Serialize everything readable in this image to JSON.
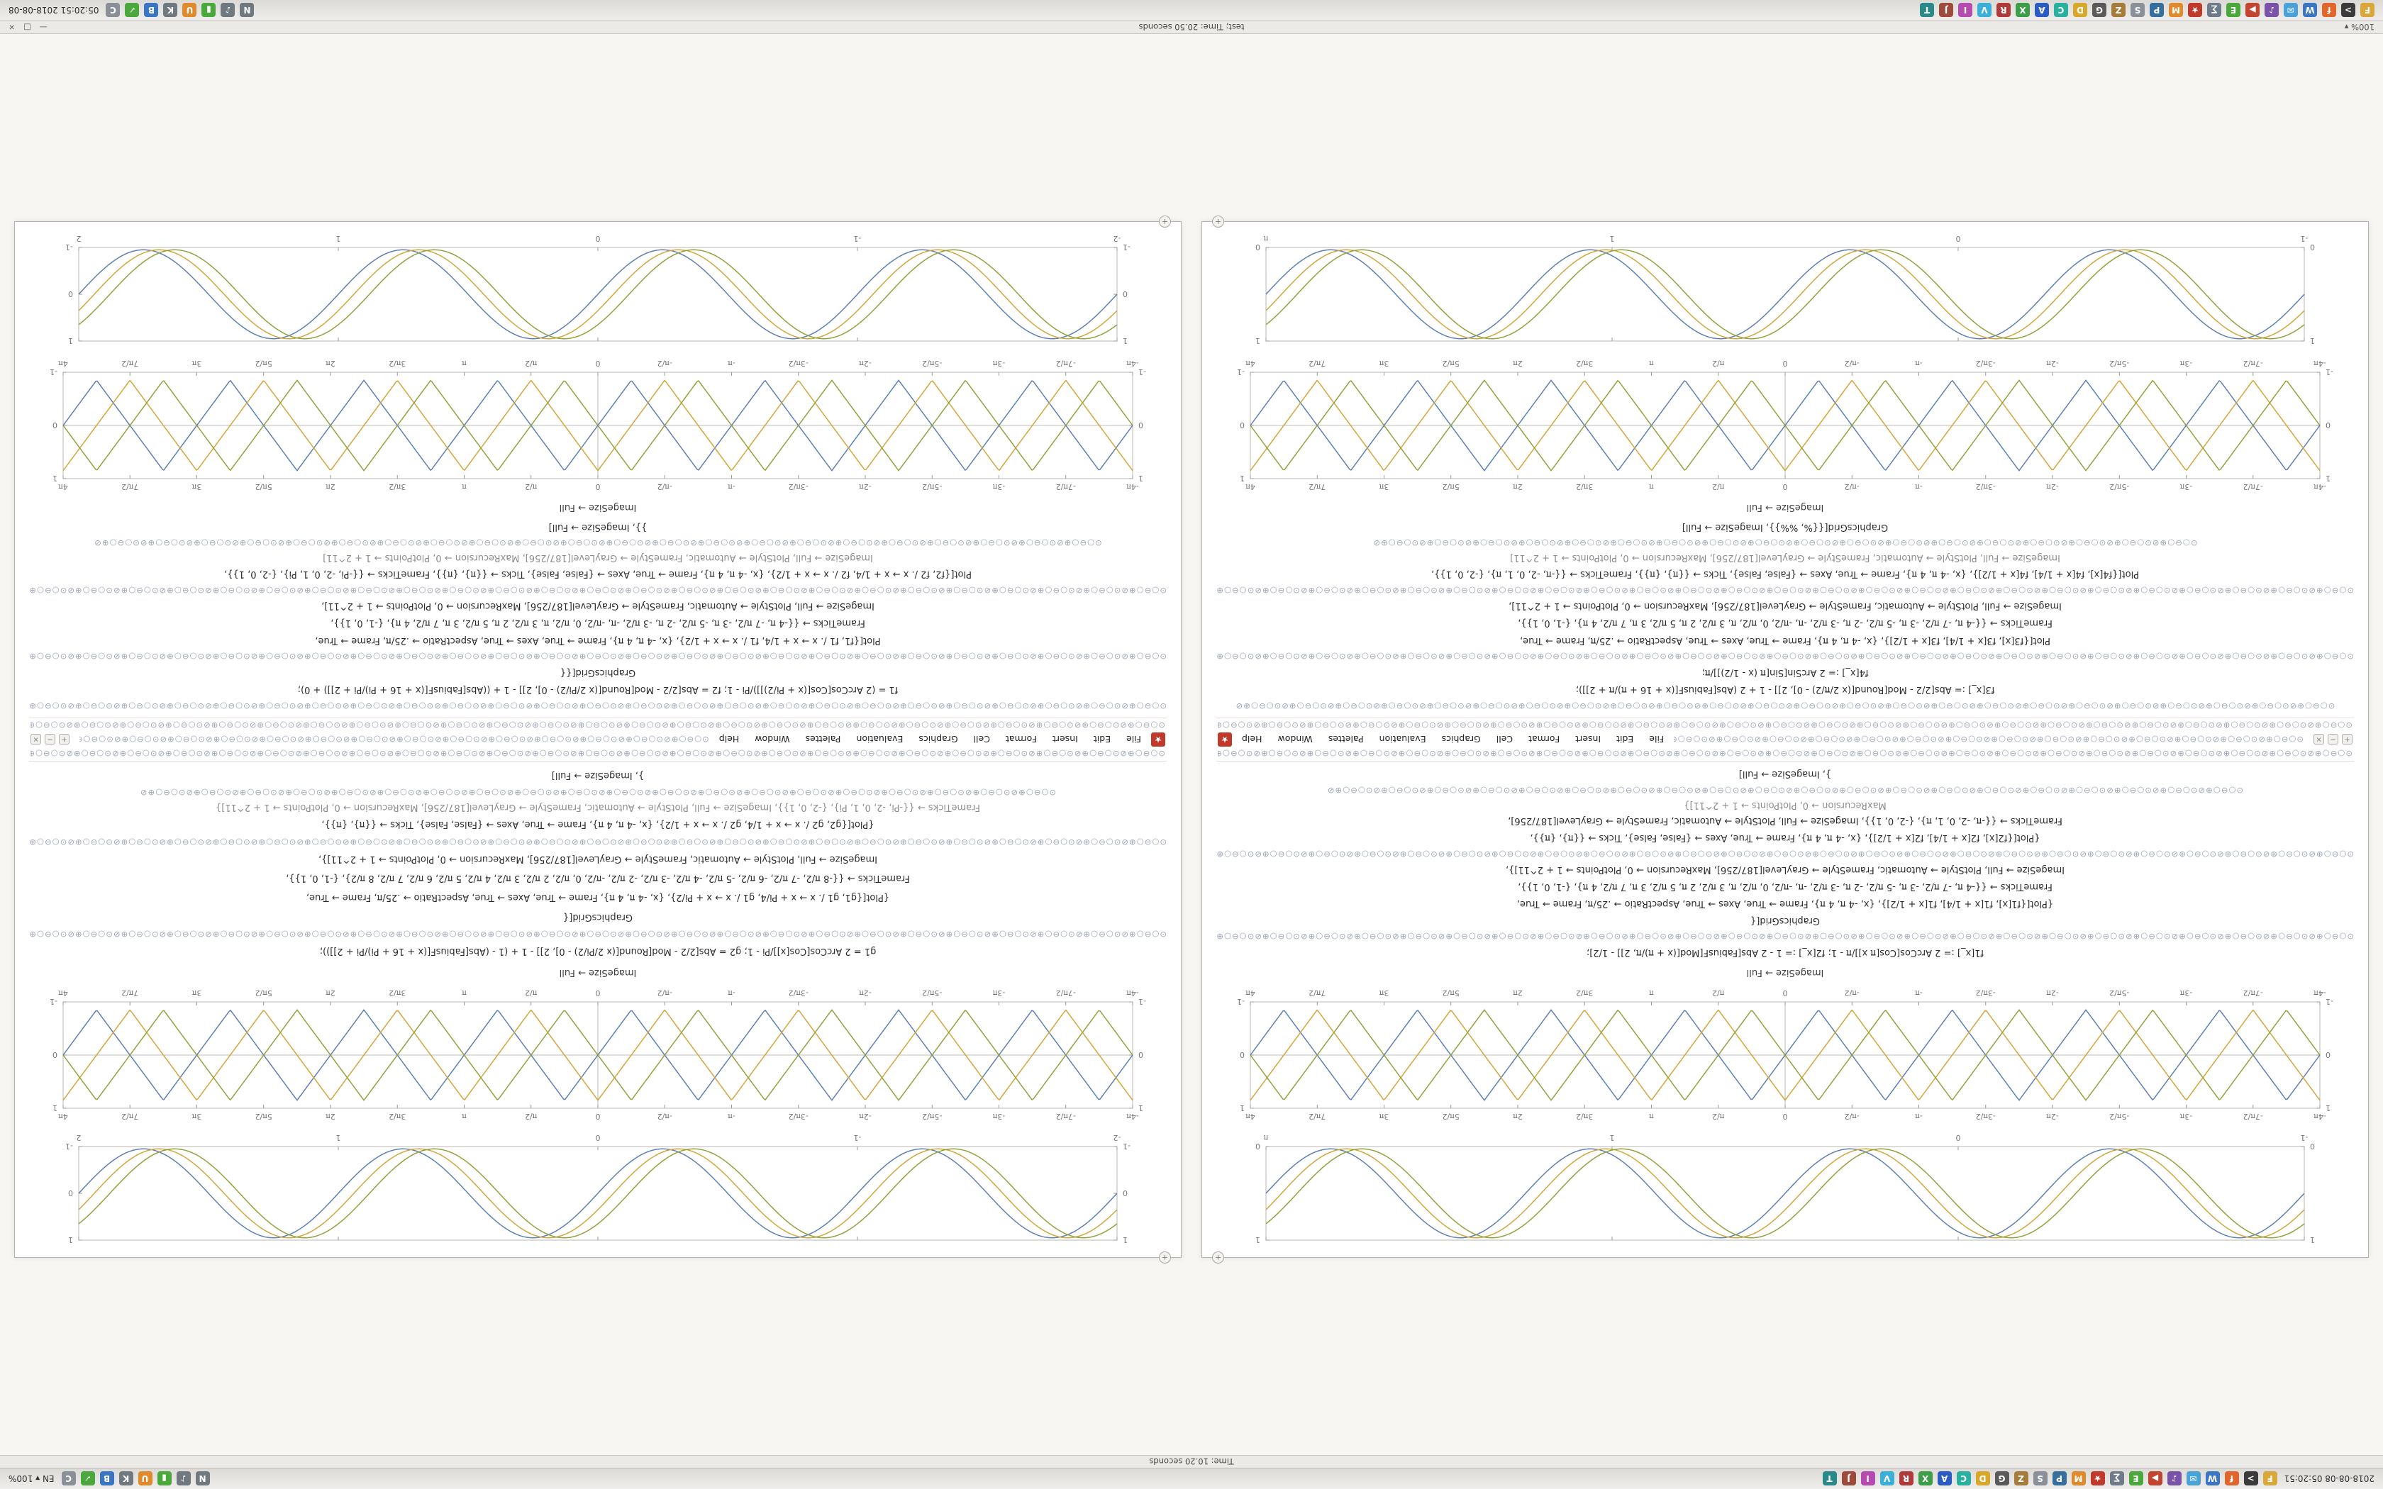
{
  "desktop": {
    "top_bar": {
      "clock": "2018-08-08  05:20:51",
      "right_text": "EN ▾  100%"
    },
    "top_status": {
      "text": "Time: 10.20 seconds"
    },
    "bottom_title": {
      "zoom": "100% ▾",
      "text": "test;  Time: 20.50 seconds",
      "buttons": [
        "—",
        "□",
        "×"
      ]
    },
    "bottom_bar": {
      "clock": "05:20:51  2018-08-08"
    },
    "app_icons": [
      {
        "n": "files",
        "bg": "#d9a73a",
        "g": "F"
      },
      {
        "n": "terminal",
        "bg": "#3b3b3b",
        "g": ">"
      },
      {
        "n": "firefox",
        "bg": "#e0662b",
        "g": "f"
      },
      {
        "n": "web-browser",
        "bg": "#3a76c4",
        "g": "W"
      },
      {
        "n": "mail",
        "bg": "#4aa3d8",
        "g": "✉"
      },
      {
        "n": "music",
        "bg": "#7a52a8",
        "g": "♪"
      },
      {
        "n": "video-player",
        "bg": "#c4452f",
        "g": "▶"
      },
      {
        "n": "text-editor",
        "bg": "#4ba83d",
        "g": "E"
      },
      {
        "n": "calculator",
        "bg": "#6f7b8a",
        "g": "∑"
      },
      {
        "n": "mathematica",
        "bg": "#c0392b",
        "g": "★"
      },
      {
        "n": "matlab",
        "bg": "#e08a2b",
        "g": "M"
      },
      {
        "n": "python",
        "bg": "#366f9e",
        "g": "P"
      },
      {
        "n": "settings",
        "bg": "#8a8f98",
        "g": "S"
      },
      {
        "n": "archive-manager",
        "bg": "#a67c3a",
        "g": "Z"
      },
      {
        "n": "image-editor",
        "bg": "#5a5a5a",
        "g": "G"
      },
      {
        "n": "draw",
        "bg": "#d9a72a",
        "g": "D"
      },
      {
        "n": "chat",
        "bg": "#2ab0a0",
        "g": "C"
      },
      {
        "n": "office-writer",
        "bg": "#2a5ac4",
        "g": "A"
      },
      {
        "n": "spreadsheet",
        "bg": "#3d9e4a",
        "g": "X"
      },
      {
        "n": "pdf-viewer",
        "bg": "#b03a3a",
        "g": "R"
      },
      {
        "n": "virtualbox",
        "bg": "#3ab0d8",
        "g": "V"
      },
      {
        "n": "photos",
        "bg": "#b54ab0",
        "g": "I"
      },
      {
        "n": "java",
        "bg": "#9e4a3d",
        "g": "J"
      },
      {
        "n": "latex",
        "bg": "#2a8a8a",
        "g": "T"
      }
    ],
    "tray_icons": [
      {
        "n": "network",
        "bg": "#707880",
        "g": "N"
      },
      {
        "n": "volume",
        "bg": "#707880",
        "g": "♪"
      },
      {
        "n": "battery",
        "bg": "#4ba83d",
        "g": "▮"
      },
      {
        "n": "updates",
        "bg": "#e08a2b",
        "g": "U"
      },
      {
        "n": "keyboard-layout",
        "bg": "#707880",
        "g": "K"
      },
      {
        "n": "bluetooth",
        "bg": "#3a76c4",
        "g": "B"
      },
      {
        "n": "security",
        "bg": "#4ba83d",
        "g": "✓"
      },
      {
        "n": "clipboard",
        "bg": "#8a8f98",
        "g": "C"
      }
    ]
  },
  "chrome": {
    "circle_pattern": "⊙○⊖○⊕⊘",
    "badge_glyph": "+",
    "spikey_glyph": "★",
    "controls": [
      "+",
      "−",
      "×"
    ]
  },
  "windows": [
    {
      "menu": [
        "File",
        "Edit",
        "Insert",
        "Format",
        "Cell",
        "Graphics",
        "Evaluation",
        "Palettes",
        "Window",
        "Help"
      ],
      "caption_top": "ImageSize → Full",
      "caption_bottom": "ImageSize → Full",
      "plots": {
        "smooth": {
          "shape": "sine",
          "periods": 4,
          "axes": false,
          "label_top": false,
          "xticks": [
            "-1",
            "0",
            "1",
            "π"
          ],
          "yticks": [
            "0",
            "1"
          ],
          "series": [
            {
              "color": "#5e81b5",
              "ph": 0,
              "amp": 0.95
            },
            {
              "color": "#d3a63d",
              "ph": 0.06,
              "amp": 0.95
            },
            {
              "color": "#93a23f",
              "ph": 0.12,
              "amp": 0.95
            }
          ]
        },
        "braid": {
          "shape": "tri",
          "periods": 8,
          "axes": true,
          "label_top": true,
          "xticks": [
            "-4π",
            "-7π/2",
            "-3π",
            "-5π/2",
            "-2π",
            "-3π/2",
            "-π",
            "-π/2",
            "0",
            "π/2",
            "π",
            "3π/2",
            "2π",
            "5π/2",
            "3π",
            "7π/2",
            "4π"
          ],
          "yticks": [
            "-1",
            "0",
            "1"
          ],
          "series": [
            {
              "color": "#5e81b5",
              "ph": 0,
              "amp": 0.85
            },
            {
              "color": "#d3a63d",
              "ph": 0.25,
              "amp": 0.85
            },
            {
              "color": "#93a23f",
              "ph": 0.5,
              "amp": 0.85
            }
          ]
        }
      },
      "code_top": [
        {
          "c": "code",
          "t": "f1[x_] := 2 ArcCos[Cos[π x]]/π - 1;    f2[x_] := 1 - 2 Abs[FabiusF[Mod[(x + π)/π, 2]] - 1/2];"
        },
        {
          "c": "circles",
          "n": 26
        },
        {
          "c": "code",
          "t": "GraphicsGrid[{"
        },
        {
          "c": "code",
          "t": "{Plot[{f1[x], f1[x + 1/4], f1[x + 1/2]}, {x, -4 π, 4 π}, Frame → True, Axes → True, AspectRatio → .25/π, Frame → True,"
        },
        {
          "c": "code",
          "t": "FrameTicks → {{-4 π, -7 π/2, -3 π, -5 π/2, -2 π, -3 π/2, -π, -π/2, 0, π/2, π, 3 π/2, 2 π, 5 π/2, 3 π, 7 π/2, 4 π}, {-1, 0, 1}},"
        },
        {
          "c": "code",
          "t": "ImageSize → Full, PlotStyle → Automatic, FrameStyle → GrayLevel[187/256], MaxRecursion → 0, PlotPoints → 1 + 2^11]},"
        },
        {
          "c": "circles",
          "n": 30
        },
        {
          "c": "code",
          "t": "{Plot[{f2[x], f2[x + 1/4], f2[x + 1/2]}, {x, -4 π, 4 π}, Frame → True, Axes → {False, False}, Ticks → {{π}, {π}},"
        },
        {
          "c": "code",
          "t": "FrameTicks → {{-π, -2, 0, 1, π}, {-2, 0, 1}}, ImageSize → Full, PlotStyle → Automatic, FrameStyle → GrayLevel[187/256],"
        },
        {
          "c": "dim",
          "t": "MaxRecursion → 0, PlotPoints → 1 + 2^11]}"
        },
        {
          "c": "circles",
          "n": 20
        },
        {
          "c": "code",
          "t": "}, ImageSize → Full]"
        }
      ],
      "code_bottom": [
        {
          "c": "circles",
          "n": 24
        },
        {
          "c": "code",
          "t": "f3[x_] := Abs[2/2 - Mod[Round[(x 2/π/2) - 0], 2]] - 1 + 2 (Abs[FabiusF[(x + 16 + π)/π + 2]]);"
        },
        {
          "c": "code",
          "t": "f4[x_] := 2 ArcSin[Sin[π (x - 1/2)]]/π;"
        },
        {
          "c": "circles",
          "n": 30
        },
        {
          "c": "code",
          "t": "Plot[{f3[x], f3[x + 1/4], f3[x + 1/2]}, {x, -4 π, 4 π}, Frame → True, Axes → True, AspectRatio → .25/π, Frame → True,"
        },
        {
          "c": "code",
          "t": "FrameTicks → {{-4 π, -7 π/2, -3 π, -5 π/2, -2 π, -3 π/2, -π, -π/2, 0, π/2, π, 3 π/2, 2 π, 5 π/2, 3 π, 7 π/2, 4 π}, {-1, 0, 1}},"
        },
        {
          "c": "code",
          "t": "ImageSize → Full, PlotStyle → Automatic, FrameStyle → GrayLevel[187/256], MaxRecursion → 0, PlotPoints → 1 + 2^11],"
        },
        {
          "c": "circles",
          "n": 34
        },
        {
          "c": "code",
          "t": "Plot[{f4[x], f4[x + 1/4], f4[x + 1/2]}, {x, -4 π, 4 π}, Frame → True, Axes → {False, False}, Ticks → {{π}, {π}}, FrameTicks → {{-π, -2, 0, 1, π}, {-2, 0, 1}},"
        },
        {
          "c": "dim",
          "t": "ImageSize → Full, PlotStyle → Automatic, FrameStyle → GrayLevel[187/256], MaxRecursion → 0, PlotPoints → 1 + 2^11]"
        },
        {
          "c": "circles",
          "n": 18
        },
        {
          "c": "code",
          "t": "GraphicsGrid[{{%, %%}}, ImageSize → Full]"
        }
      ]
    },
    {
      "menu": [
        "File",
        "Edit",
        "Insert",
        "Format",
        "Cell",
        "Graphics",
        "Evaluation",
        "Palettes",
        "Window",
        "Help"
      ],
      "caption_top": "ImageSize → Full",
      "caption_bottom": "ImageSize → Full",
      "plots": {
        "smooth": {
          "shape": "sine",
          "periods": 4,
          "axes": false,
          "label_top": false,
          "xticks": [
            "-2",
            "-1",
            "0",
            "1",
            "2"
          ],
          "yticks": [
            "-1",
            "0",
            "1"
          ],
          "series": [
            {
              "color": "#5e81b5",
              "ph": 0,
              "amp": 0.95
            },
            {
              "color": "#d3a63d",
              "ph": 0.06,
              "amp": 0.95
            },
            {
              "color": "#93a23f",
              "ph": 0.12,
              "amp": 0.95
            }
          ]
        },
        "braid": {
          "shape": "tri",
          "periods": 8,
          "axes": true,
          "label_top": true,
          "xticks": [
            "-4π",
            "-7π/2",
            "-3π",
            "-5π/2",
            "-2π",
            "-3π/2",
            "-π",
            "-π/2",
            "0",
            "π/2",
            "π",
            "3π/2",
            "2π",
            "5π/2",
            "3π",
            "7π/2",
            "4π"
          ],
          "yticks": [
            "-1",
            "0",
            "1"
          ],
          "series": [
            {
              "color": "#5e81b5",
              "ph": 0,
              "amp": 0.85
            },
            {
              "color": "#d3a63d",
              "ph": 0.25,
              "amp": 0.85
            },
            {
              "color": "#93a23f",
              "ph": 0.5,
              "amp": 0.85
            }
          ]
        }
      },
      "code_top": [
        {
          "c": "code",
          "t": "g1 = 2 ArcCos[Cos[x]]/Pi - 1;    g2 = Abs[2/2 - Mod[Round[(x 2/Pi/2) - 0], 2]] - 1 + (1 - (Abs[FabiusF[(x + 16 + Pi)/Pi + 2]]));"
        },
        {
          "c": "circles",
          "n": 28
        },
        {
          "c": "code",
          "t": "GraphicsGrid[{"
        },
        {
          "c": "code",
          "t": "{Plot[{g1, g1 /. x → x + Pi/4, g1 /. x → x + Pi/2}, {x, -4 π, 4 π}, Frame → True, Axes → True, AspectRatio → .25/π, Frame → True,"
        },
        {
          "c": "code",
          "t": "FrameTicks → {{-8 π/2, -7 π/2, -6 π/2, -5 π/2, -4 π/2, -3 π/2, -2 π/2, -π/2, 0, π/2, 2 π/2, 3 π/2, 4 π/2, 5 π/2, 6 π/2, 7 π/2, 8 π/2}, {-1, 0, 1}},"
        },
        {
          "c": "code",
          "t": "ImageSize → Full, PlotStyle → Automatic, FrameStyle → GrayLevel[187/256], MaxRecursion → 0, PlotPoints → 1 + 2^11]},"
        },
        {
          "c": "circles",
          "n": 32
        },
        {
          "c": "code",
          "t": "{Plot[{g2, g2 /. x → x + 1/4, g2 /. x → x + 1/2}, {x, -4 π, 4 π}, Frame → True, Axes → {False, False}, Ticks → {{π}, {π}},"
        },
        {
          "c": "dim",
          "t": "FrameTicks → {{-Pi, -2, 0, 1, Pi}, {-2, 0, 1}}, ImageSize → Full, PlotStyle → Automatic, FrameStyle → GrayLevel[187/256], MaxRecursion → 0, PlotPoints → 1 + 2^11]}"
        },
        {
          "c": "circles",
          "n": 20
        },
        {
          "c": "code",
          "t": "}, ImageSize → Full]"
        }
      ],
      "code_bottom": [
        {
          "c": "circles",
          "n": 26
        },
        {
          "c": "code",
          "t": "f1 = (2 ArcCos[Cos[(x + Pi/2)]])/Pi - 1;    f2 = Abs[2/2 - Mod[Round[(x 2/Pi/2) - 0], 2]] - 1 + ((Abs[FabiusF[(x + 16 + Pi)/Pi + 2]]) + 0);"
        },
        {
          "c": "code",
          "t": "GraphicsGrid[{{"
        },
        {
          "c": "circles",
          "n": 34
        },
        {
          "c": "code",
          "t": "Plot[{f1, f1 /. x → x + 1/4, f1 /. x → x + 1/2}, {x, -4 π, 4 π}, Frame → True, Axes → True, AspectRatio → .25/π, Frame → True,"
        },
        {
          "c": "code",
          "t": "FrameTicks → {{-4 π, -7 π/2, -3 π, -5 π/2, -2 π, -3 π/2, -π, -π/2, 0, π/2, π, 3 π/2, 2 π, 5 π/2, 3 π, 7 π/2, 4 π}, {-1, 0, 1}},"
        },
        {
          "c": "code",
          "t": "ImageSize → Full, PlotStyle → Automatic, FrameStyle → GrayLevel[187/256], MaxRecursion → 0, PlotPoints → 1 + 2^11],"
        },
        {
          "c": "circles",
          "n": 30
        },
        {
          "c": "code",
          "t": "Plot[{f2, f2 /. x → x + 1/4, f2 /. x → x + 1/2}, {x, -4 π, 4 π}, Frame → True, Axes → {False, False}, Ticks → {{π}, {π}}, FrameTicks → {{-Pi, -2, 0, 1, Pi}, {-2, 0, 1}},"
        },
        {
          "c": "dim",
          "t": "ImageSize → Full, PlotStyle → Automatic, FrameStyle → GrayLevel[187/256], MaxRecursion → 0, PlotPoints → 1 + 2^11]"
        },
        {
          "c": "circles",
          "n": 22
        },
        {
          "c": "code",
          "t": "}}, ImageSize → Full]"
        }
      ]
    }
  ]
}
